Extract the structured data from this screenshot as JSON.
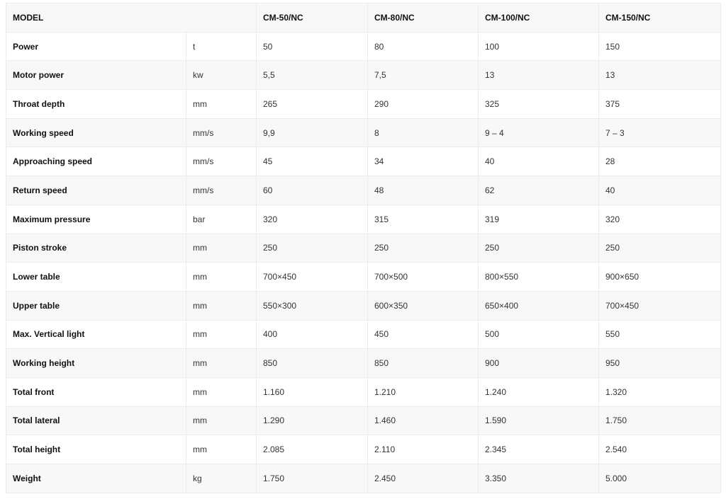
{
  "header": {
    "label": "MODEL",
    "models": [
      "CM-50/NC",
      "CM-80/NC",
      "CM-100/NC",
      "CM-150/NC"
    ]
  },
  "rows": [
    {
      "name": "Power",
      "unit": "t",
      "values": [
        "50",
        "80",
        "100",
        "150"
      ]
    },
    {
      "name": "Motor power",
      "unit": "kw",
      "values": [
        "5,5",
        "7,5",
        "13",
        "13"
      ]
    },
    {
      "name": "Throat depth",
      "unit": "mm",
      "values": [
        "265",
        "290",
        "325",
        "375"
      ]
    },
    {
      "name": "Working speed",
      "unit": "mm/s",
      "values": [
        "9,9",
        "8",
        "9 – 4",
        "7 – 3"
      ]
    },
    {
      "name": "Approaching speed",
      "unit": "mm/s",
      "values": [
        "45",
        "34",
        "40",
        "28"
      ]
    },
    {
      "name": "Return speed",
      "unit": "mm/s",
      "values": [
        "60",
        "48",
        "62",
        "40"
      ]
    },
    {
      "name": "Maximum pressure",
      "unit": "bar",
      "values": [
        "320",
        "315",
        "319",
        "320"
      ]
    },
    {
      "name": "Piston stroke",
      "unit": "mm",
      "values": [
        "250",
        "250",
        "250",
        "250"
      ]
    },
    {
      "name": "Lower table",
      "unit": "mm",
      "values": [
        "700×450",
        "700×500",
        "800×550",
        "900×650"
      ]
    },
    {
      "name": "Upper table",
      "unit": "mm",
      "values": [
        "550×300",
        "600×350",
        "650×400",
        "700×450"
      ]
    },
    {
      "name": "Max. Vertical light",
      "unit": "mm",
      "values": [
        "400",
        "450",
        "500",
        "550"
      ]
    },
    {
      "name": "Working height",
      "unit": "mm",
      "values": [
        "850",
        "850",
        "900",
        "950"
      ]
    },
    {
      "name": "Total front",
      "unit": "mm",
      "values": [
        "1.160",
        "1.210",
        "1.240",
        "1.320"
      ]
    },
    {
      "name": "Total lateral",
      "unit": "mm",
      "values": [
        "1.290",
        "1.460",
        "1.590",
        "1.750"
      ]
    },
    {
      "name": "Total height",
      "unit": "mm",
      "values": [
        "2.085",
        "2.110",
        "2.345",
        "2.540"
      ]
    },
    {
      "name": "Weight",
      "unit": "kg",
      "values": [
        "1.750",
        "2.450",
        "3.350",
        "5.000"
      ]
    }
  ]
}
